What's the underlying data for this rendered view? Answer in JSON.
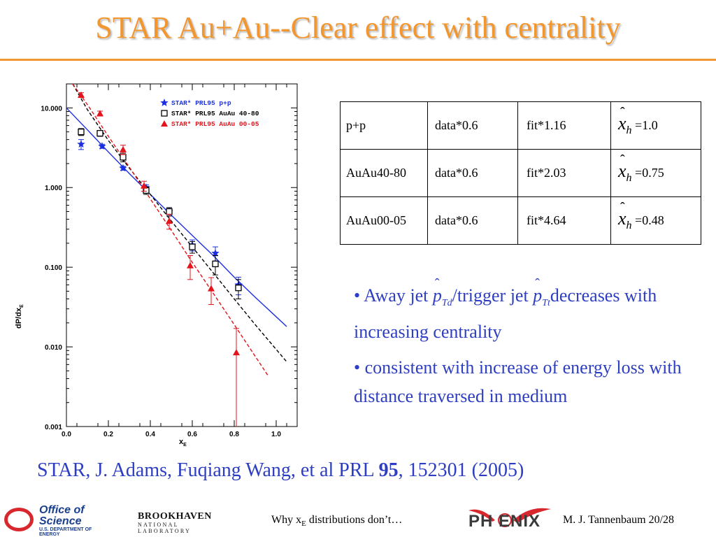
{
  "slide": {
    "title": "STAR Au+Au--Clear effect with centrality",
    "table": {
      "rows": [
        {
          "sample": "p+p",
          "data": "data*0.6",
          "fit": "fit*1.16",
          "xh": "=1.0"
        },
        {
          "sample": "AuAu40-80",
          "data": "data*0.6",
          "fit": "fit*2.03",
          "xh": "=0.75"
        },
        {
          "sample": "AuAu00-05",
          "data": "data*0.6",
          "fit": "fit*4.64",
          "xh": "=0.48"
        }
      ],
      "xh_symbol": "x",
      "xh_sub": "h"
    },
    "bullets": {
      "b1_part1": "• Away jet ",
      "b1_p1": "p",
      "b1_p1_sub": "Td",
      "b1_part2": "/trigger jet ",
      "b1_p2": "p",
      "b1_p2_sub": "Tt",
      "b1_part3": "decreases with increasing centrality",
      "b2": "• consistent with increase of energy loss with distance traversed in medium"
    },
    "citation_pre": "STAR, J. Adams, Fuqiang Wang, et al  PRL ",
    "citation_bold": "95",
    "citation_post": ", 152301 (2005)"
  },
  "footer": {
    "doe_line1": "Office of",
    "doe_line2": "Science",
    "doe_line3": "U.S. DEPARTMENT OF ENERGY",
    "bnl_line1": "BROOKHAVEN",
    "bnl_line2": "NATIONAL LABORATORY",
    "center_pre": "Why x",
    "center_sub": "E",
    "center_post": " distributions don’t…",
    "phenix": "PH ENIX",
    "right": "M. J. Tannenbaum   20/28"
  },
  "colors": {
    "title": "#f2962f",
    "text_blue": "#2d3ec2",
    "pp": "#1a2fe0",
    "auau4080": "#000000",
    "auau0005": "#e3141b"
  },
  "chart_data": {
    "type": "scatter",
    "xlabel": "x_E",
    "ylabel": "dP/dx_E",
    "xlim": [
      0.0,
      1.1
    ],
    "ylim": [
      0.001,
      20
    ],
    "yscale": "log",
    "xticks": [
      "0.0",
      "0.2",
      "0.4",
      "0.6",
      "0.8",
      "1.0"
    ],
    "yticks": [
      "0.001",
      "0.010",
      "0.100",
      "1.000",
      "10.000"
    ],
    "legend_position": "top-right",
    "series": [
      {
        "name": "STAR* PRL95 p+p",
        "marker": "star",
        "color": "#1a2fe0",
        "x": [
          0.07,
          0.17,
          0.27,
          0.38,
          0.49,
          0.6,
          0.71,
          0.82
        ],
        "y": [
          3.5,
          3.3,
          1.75,
          1.0,
          0.5,
          0.19,
          0.15,
          0.06
        ],
        "err": [
          0.5,
          0.2,
          0.1,
          0.08,
          0.06,
          0.03,
          0.03,
          0.015
        ],
        "fit": {
          "style": "solid",
          "x": [
            0.0,
            0.1,
            0.2,
            0.3,
            0.4,
            0.5,
            0.6,
            0.7,
            0.8,
            0.9,
            1.05
          ],
          "y": [
            10.0,
            5.3,
            2.8,
            1.5,
            0.82,
            0.45,
            0.25,
            0.14,
            0.075,
            0.042,
            0.018
          ]
        }
      },
      {
        "name": "STAR* PRL95 AuAu 40-80",
        "marker": "open-square",
        "color": "#000000",
        "x": [
          0.07,
          0.16,
          0.27,
          0.38,
          0.49,
          0.6,
          0.71,
          0.82
        ],
        "y": [
          5.0,
          4.8,
          2.4,
          0.92,
          0.5,
          0.18,
          0.11,
          0.055
        ],
        "err": [
          0.5,
          0.4,
          0.3,
          0.1,
          0.06,
          0.03,
          0.03,
          0.015
        ],
        "fit": {
          "style": "dashed",
          "x": [
            0.03,
            0.1,
            0.2,
            0.3,
            0.4,
            0.5,
            0.6,
            0.7,
            0.8,
            0.9,
            1.05
          ],
          "y": [
            20.0,
            9.5,
            3.9,
            1.75,
            0.82,
            0.38,
            0.18,
            0.085,
            0.04,
            0.019,
            0.0065
          ]
        }
      },
      {
        "name": "STAR* PRL95 AuAu 00-05",
        "marker": "filled-triangle",
        "color": "#e3141b",
        "x": [
          0.07,
          0.16,
          0.27,
          0.37,
          0.49,
          0.59,
          0.69,
          0.81
        ],
        "y": [
          14.5,
          8.5,
          3.0,
          1.05,
          0.38,
          0.105,
          0.054,
          0.0085
        ],
        "err": [
          1.0,
          0.6,
          0.4,
          0.15,
          0.08,
          0.035,
          0.02,
          0.0085
        ],
        "fit": {
          "style": "dashed",
          "x": [
            0.03,
            0.1,
            0.2,
            0.3,
            0.4,
            0.5,
            0.6,
            0.7,
            0.8,
            0.96
          ],
          "y": [
            20.0,
            11.0,
            4.4,
            1.8,
            0.72,
            0.29,
            0.115,
            0.047,
            0.019,
            0.0044
          ]
        }
      }
    ]
  }
}
